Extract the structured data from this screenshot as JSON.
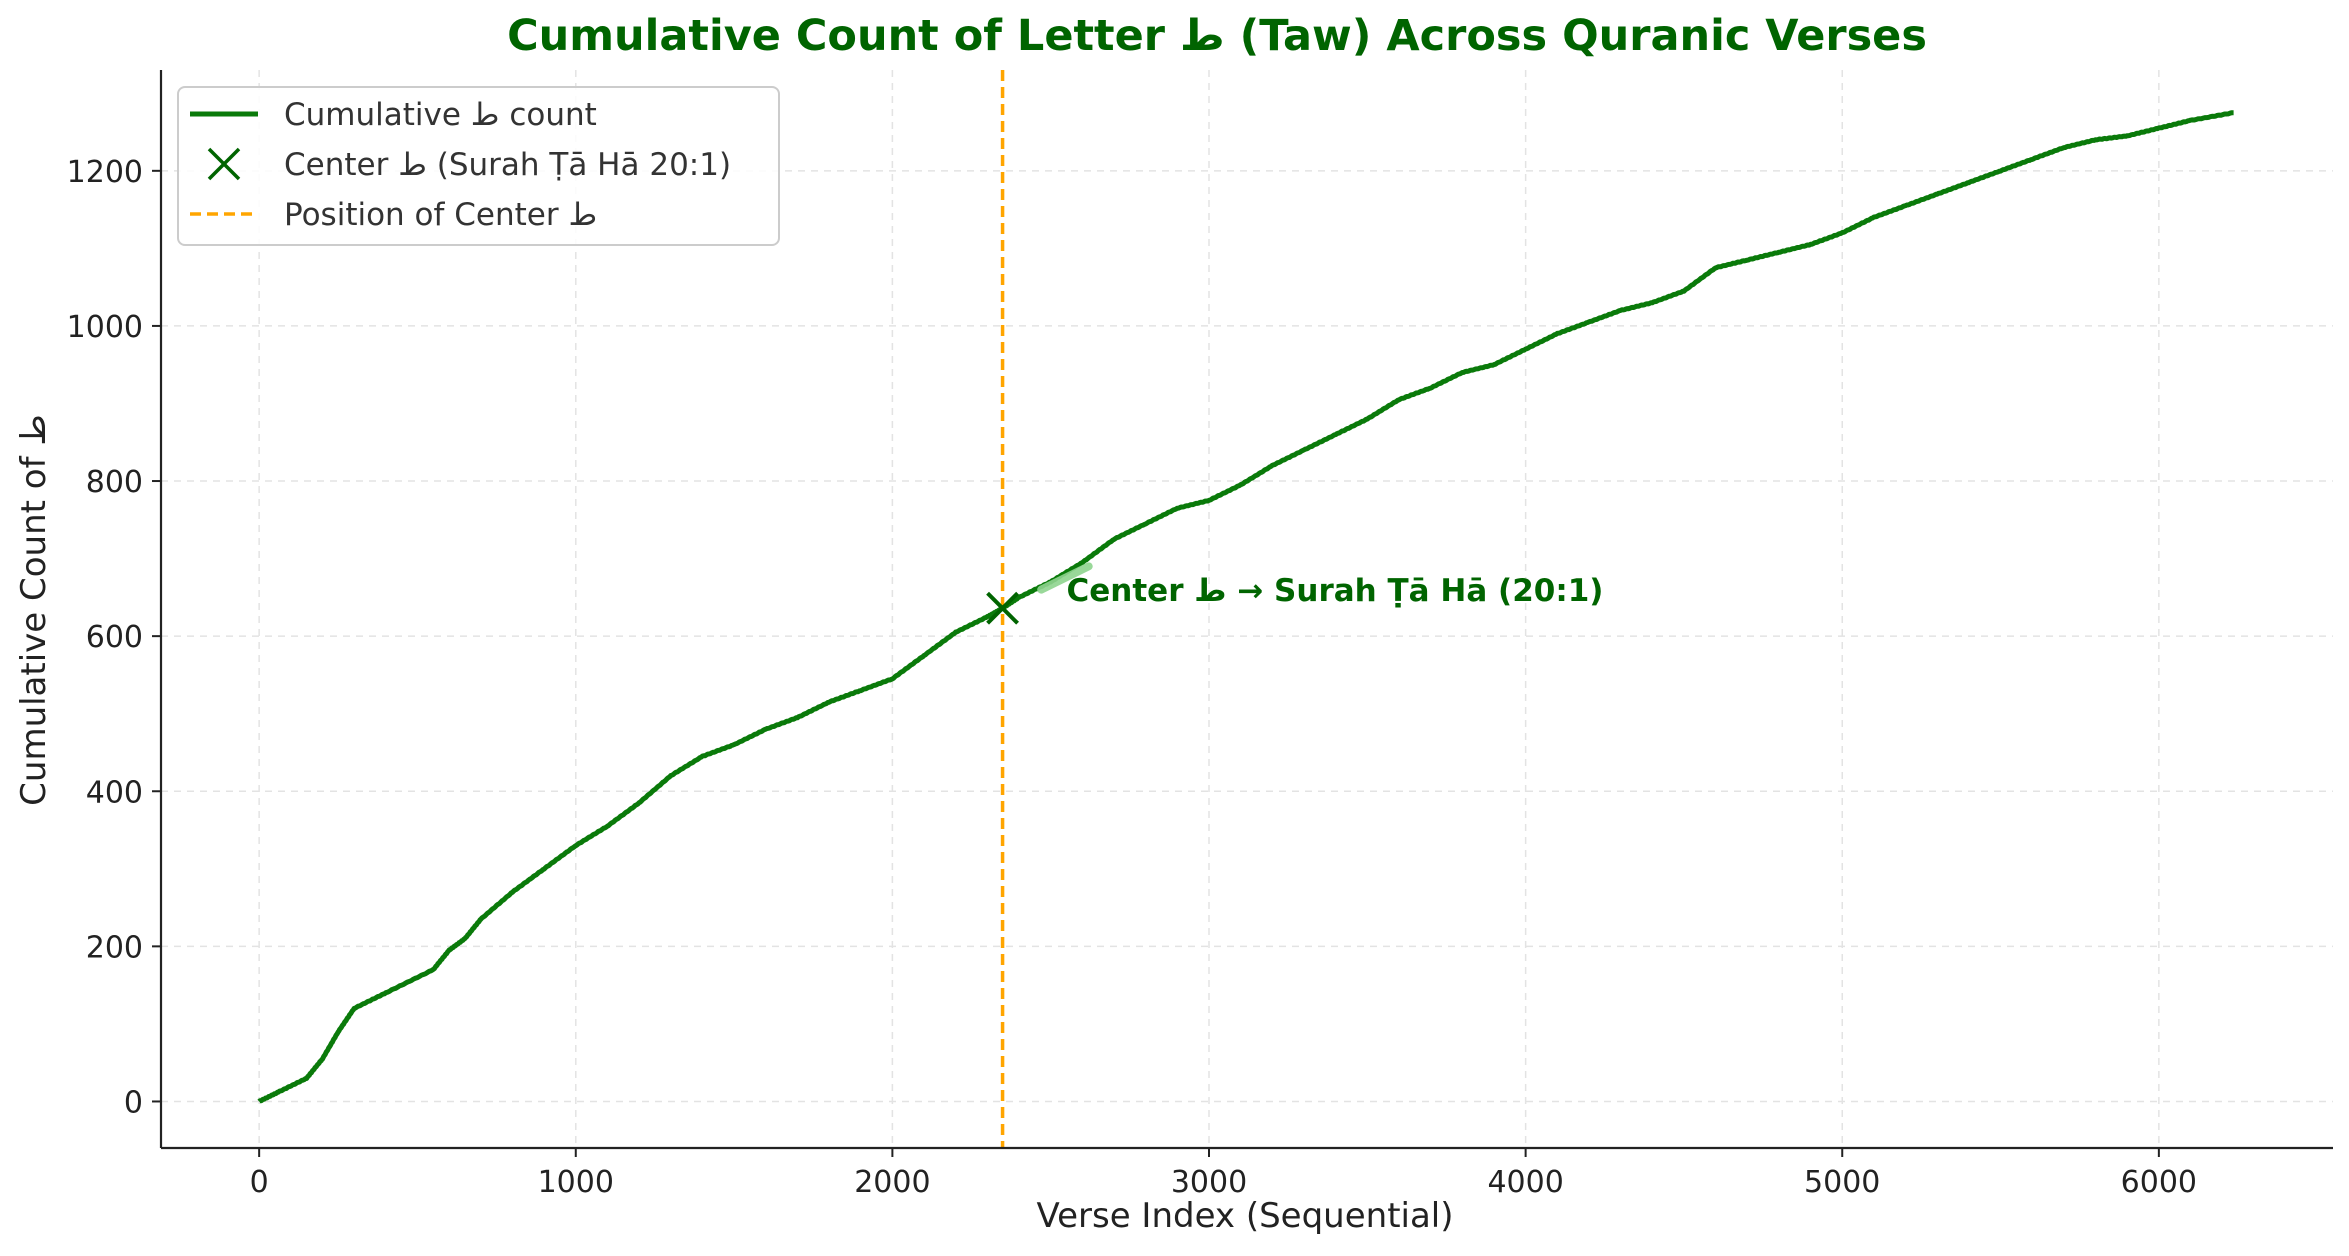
{
  "chart_data": {
    "type": "line",
    "title": "Cumulative Count of Letter ط (Taw) Across Quranic Verses",
    "xlabel": "Verse Index (Sequential)",
    "ylabel": "Cumulative Count of ط",
    "xlim": [
      -310,
      6550
    ],
    "ylim": [
      -60,
      1330
    ],
    "xticks": [
      0,
      1000,
      2000,
      3000,
      4000,
      5000,
      6000
    ],
    "yticks": [
      0,
      200,
      400,
      600,
      800,
      1000,
      1200
    ],
    "grid": true,
    "legend_position": "top-left",
    "colors": {
      "title": "#006400",
      "line": "#0a7a0a",
      "marker": "#006400",
      "center_line": "#ffa500",
      "annotation": "#006400",
      "highlight": "#8fd48f"
    },
    "series": [
      {
        "name": "Cumulative ط count",
        "x": [
          0,
          60,
          150,
          200,
          250,
          300,
          400,
          550,
          600,
          650,
          700,
          800,
          900,
          1000,
          1100,
          1200,
          1300,
          1400,
          1500,
          1600,
          1700,
          1800,
          1900,
          2000,
          2100,
          2200,
          2300,
          2348,
          2400,
          2500,
          2600,
          2700,
          2800,
          2900,
          3000,
          3100,
          3200,
          3300,
          3400,
          3500,
          3600,
          3700,
          3800,
          3900,
          4000,
          4100,
          4200,
          4300,
          4400,
          4500,
          4600,
          4700,
          4800,
          4900,
          5000,
          5100,
          5200,
          5300,
          5400,
          5500,
          5600,
          5700,
          5800,
          5900,
          6000,
          6100,
          6236
        ],
        "y": [
          0,
          12,
          30,
          55,
          90,
          120,
          140,
          170,
          195,
          210,
          235,
          270,
          300,
          330,
          355,
          385,
          420,
          445,
          460,
          480,
          495,
          515,
          530,
          545,
          575,
          605,
          625,
          636,
          650,
          670,
          695,
          725,
          745,
          765,
          775,
          795,
          820,
          840,
          860,
          880,
          905,
          920,
          940,
          950,
          970,
          990,
          1005,
          1020,
          1030,
          1045,
          1075,
          1085,
          1095,
          1105,
          1120,
          1140,
          1155,
          1170,
          1185,
          1200,
          1215,
          1230,
          1240,
          1245,
          1255,
          1265,
          1275
        ]
      },
      {
        "name": "Center ط (Surah Ṭā Hā 20:1)",
        "x": [
          2348
        ],
        "y": [
          636
        ]
      },
      {
        "name": "Position of Center ط",
        "x": [
          2348,
          2348
        ],
        "y": [
          -60,
          1330
        ]
      }
    ],
    "highlight_segment": {
      "x": [
        2470,
        2620
      ],
      "y": [
        660,
        690
      ]
    },
    "annotation": {
      "text": "Center ط → Surah Ṭā Hā (20:1)",
      "x": 2550,
      "y": 645
    }
  }
}
